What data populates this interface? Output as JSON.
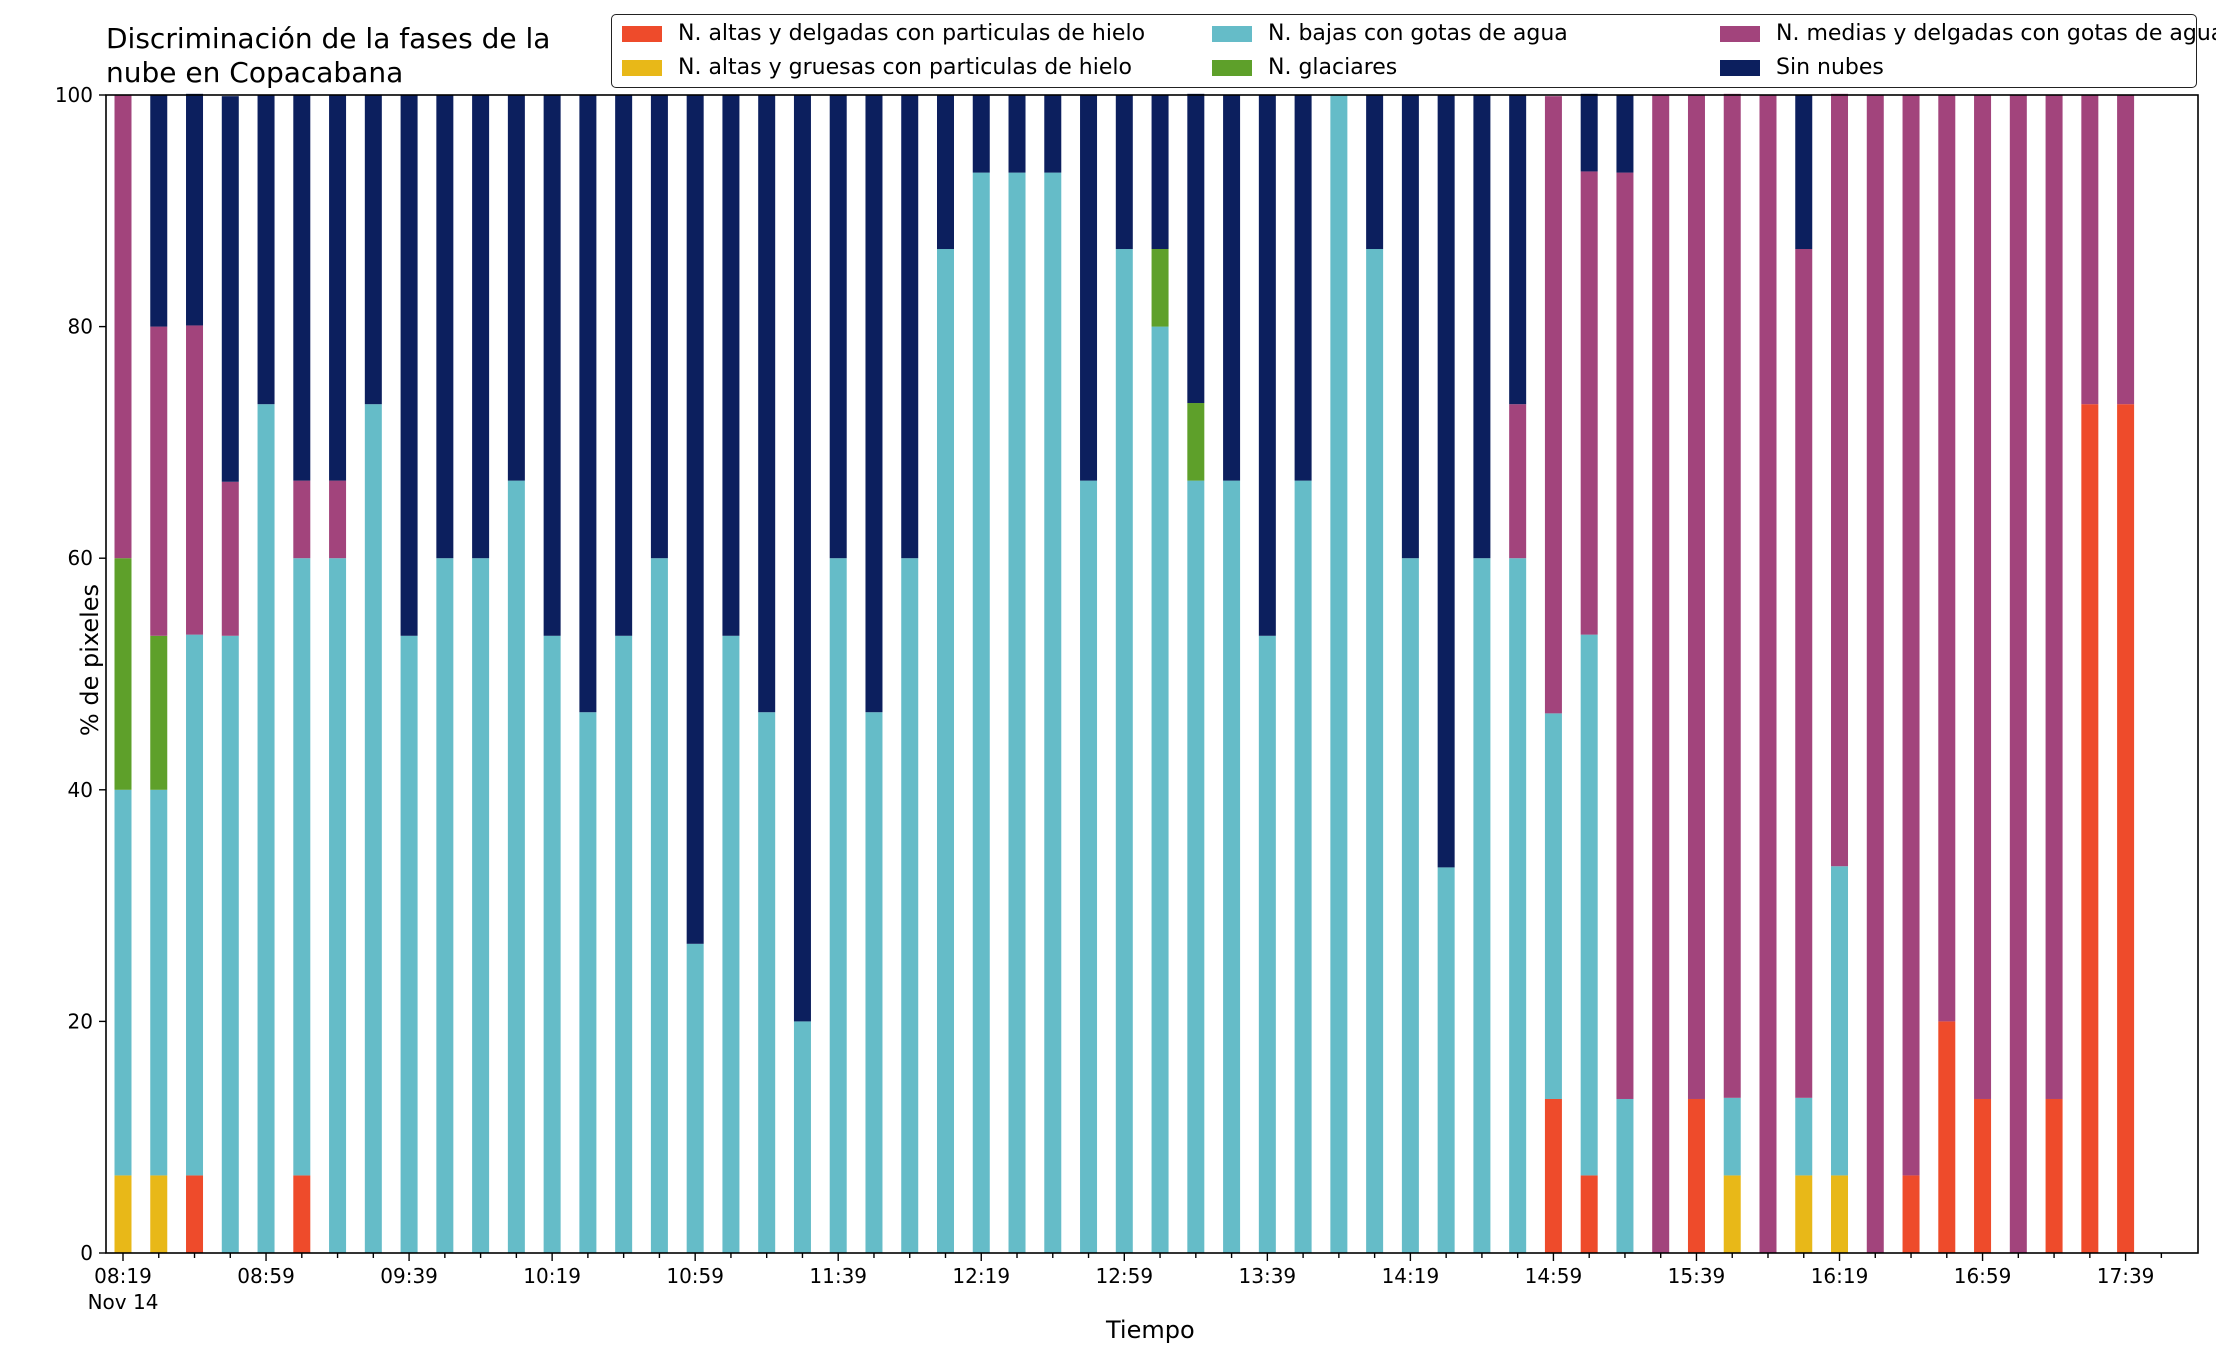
{
  "title": "Discriminación de la fases de la\nnube en Copacabana",
  "colors": {
    "ice_thin": "#ee4b2b",
    "ice_thick": "#e8b818",
    "low_water": "#65bcc8",
    "glacier": "#5ea02a",
    "mid_water": "#a2447c",
    "clear": "#0c1f5e"
  },
  "legend": [
    {
      "key": "ice_thin",
      "label": "N. altas y delgadas con particulas de hielo"
    },
    {
      "key": "ice_thick",
      "label": "N. altas y gruesas con particulas de hielo"
    },
    {
      "key": "low_water",
      "label": "N. bajas con gotas de agua"
    },
    {
      "key": "glacier",
      "label": "N. glaciares"
    },
    {
      "key": "mid_water",
      "label": "N. medias y delgadas con gotas de agua"
    },
    {
      "key": "clear",
      "label": "Sin nubes"
    }
  ],
  "chart_data": {
    "type": "bar",
    "stacked": true,
    "xlabel": "Tiempo",
    "ylabel": "% de pixeles",
    "ylim": [
      0,
      100
    ],
    "yticks": [
      0,
      20,
      40,
      60,
      80,
      100
    ],
    "x_date_note": "Nov 14",
    "x_tick_labels": [
      "08:19",
      "08:59",
      "09:39",
      "10:19",
      "10:59",
      "11:39",
      "12:19",
      "12:59",
      "13:39",
      "14:19",
      "14:59",
      "15:39",
      "16:19",
      "16:59",
      "17:39"
    ],
    "categories": [
      "08:19",
      "08:29",
      "08:39",
      "08:49",
      "08:59",
      "09:09",
      "09:19",
      "09:29",
      "09:39",
      "09:49",
      "09:59",
      "10:09",
      "10:19",
      "10:29",
      "10:39",
      "10:49",
      "10:59",
      "11:09",
      "11:19",
      "11:29",
      "11:39",
      "11:49",
      "11:59",
      "12:09",
      "12:19",
      "12:29",
      "12:39",
      "12:49",
      "12:59",
      "13:09",
      "13:19",
      "13:29",
      "13:39",
      "13:49",
      "13:59",
      "14:09",
      "14:19",
      "14:29",
      "14:39",
      "14:49",
      "14:59",
      "15:09",
      "15:19",
      "15:29",
      "15:39",
      "15:49",
      "15:59",
      "16:09",
      "16:19",
      "16:29",
      "16:39",
      "16:49",
      "16:59",
      "17:09",
      "17:19",
      "17:29",
      "17:39",
      "17:49"
    ],
    "series": [
      {
        "key": "ice_thin",
        "name": "N. altas y delgadas con particulas de hielo",
        "values": [
          0,
          0,
          6.7,
          0,
          0,
          6.7,
          0,
          0,
          0,
          0,
          0,
          0,
          0,
          0,
          0,
          0,
          0,
          0,
          0,
          0,
          0,
          0,
          0,
          0,
          0,
          0,
          0,
          0,
          0,
          0,
          0,
          0,
          0,
          0,
          0,
          0,
          0,
          0,
          0,
          0,
          13.3,
          6.7,
          0,
          0,
          13.3,
          0,
          0,
          0,
          0,
          0,
          6.7,
          20,
          13.3,
          0,
          13.3,
          73.3,
          73.3,
          0
        ]
      },
      {
        "key": "ice_thick",
        "name": "N. altas y gruesas con particulas de hielo",
        "values": [
          6.7,
          6.7,
          0,
          0,
          0,
          0,
          0,
          0,
          0,
          0,
          0,
          0,
          0,
          0,
          0,
          0,
          0,
          0,
          0,
          0,
          0,
          0,
          0,
          0,
          0,
          0,
          0,
          0,
          0,
          0,
          0,
          0,
          0,
          0,
          0,
          0,
          0,
          0,
          0,
          0,
          0,
          0,
          0,
          0,
          0,
          6.7,
          0,
          6.7,
          6.7,
          0,
          0,
          0,
          0,
          0,
          0,
          0,
          0,
          0
        ]
      },
      {
        "key": "low_water",
        "name": "N. bajas con gotas de agua",
        "values": [
          33.3,
          33.3,
          46.7,
          53.3,
          73.3,
          53.3,
          60,
          73.3,
          53.3,
          60,
          60,
          66.7,
          53.3,
          46.7,
          53.3,
          60,
          26.7,
          53.3,
          46.7,
          20,
          60,
          46.7,
          60,
          86.7,
          93.3,
          93.3,
          93.3,
          66.7,
          86.7,
          80,
          66.7,
          66.7,
          53.3,
          66.7,
          100,
          86.7,
          60,
          33.3,
          60,
          60,
          33.3,
          46.7,
          13.3,
          0,
          0,
          6.7,
          0,
          6.7,
          26.7,
          0,
          0,
          0,
          0,
          0,
          0,
          0,
          0,
          0
        ]
      },
      {
        "key": "glacier",
        "name": "N. glaciares",
        "values": [
          20,
          13.3,
          0,
          0,
          0,
          0,
          0,
          0,
          0,
          0,
          0,
          0,
          0,
          0,
          0,
          0,
          0,
          0,
          0,
          0,
          0,
          0,
          0,
          0,
          0,
          0,
          0,
          0,
          0,
          6.7,
          6.7,
          0,
          0,
          0,
          0,
          0,
          0,
          0,
          0,
          0,
          0,
          0,
          0,
          0,
          0,
          0,
          0,
          0,
          0,
          0,
          0,
          0,
          0,
          0,
          0,
          0,
          0,
          0
        ]
      },
      {
        "key": "mid_water",
        "name": "N. medias y delgadas con gotas de agua",
        "values": [
          40,
          26.7,
          26.7,
          13.3,
          0,
          6.7,
          6.7,
          0,
          0,
          0,
          0,
          0,
          0,
          0,
          0,
          0,
          0,
          0,
          0,
          0,
          0,
          0,
          0,
          0,
          0,
          0,
          0,
          0,
          0,
          0,
          0,
          0,
          0,
          0,
          0,
          0,
          0,
          0,
          0,
          13.3,
          53.3,
          40,
          80,
          100,
          86.7,
          86.7,
          100,
          73.3,
          66.7,
          100,
          93.3,
          80,
          86.7,
          100,
          86.7,
          26.7,
          26.7,
          0
        ]
      },
      {
        "key": "clear",
        "name": "Sin nubes",
        "values": [
          0,
          20,
          20,
          33.3,
          26.7,
          33.3,
          33.3,
          26.7,
          46.7,
          40,
          40,
          33.3,
          46.7,
          53.3,
          46.7,
          40,
          73.3,
          46.7,
          53.3,
          80,
          40,
          53.3,
          40,
          13.3,
          6.7,
          6.7,
          6.7,
          33.3,
          13.3,
          13.3,
          26.7,
          33.3,
          46.7,
          33.3,
          0,
          13.3,
          40,
          66.7,
          40,
          26.7,
          0,
          6.7,
          6.7,
          0,
          0,
          0,
          0,
          13.3,
          0,
          0,
          0,
          0,
          0,
          0,
          0,
          0,
          0,
          0
        ]
      }
    ]
  }
}
